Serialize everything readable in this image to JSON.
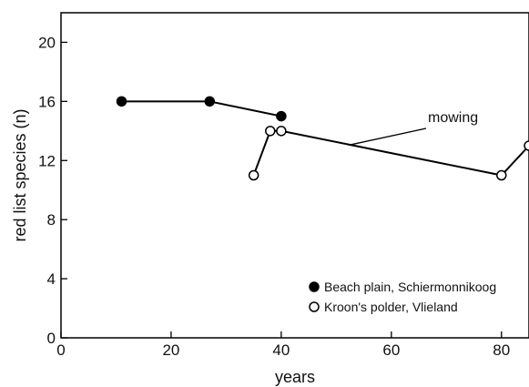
{
  "chart_data": {
    "type": "line",
    "title": "",
    "xlabel": "years",
    "ylabel": "red list species (n)",
    "xlim": [
      0,
      85
    ],
    "ylim": [
      0,
      22
    ],
    "xticks": [
      0,
      20,
      40,
      60,
      80
    ],
    "yticks": [
      0,
      4,
      8,
      12,
      16,
      20
    ],
    "grid": false,
    "legend_position": "bottom-right",
    "series": [
      {
        "name": "Beach plain, Schiermonnikoog",
        "marker": "filled-circle",
        "color": "#000000",
        "x": [
          11,
          27,
          40
        ],
        "y": [
          16,
          16,
          15
        ]
      },
      {
        "name": "Kroon's polder, Vlieland",
        "marker": "open-circle",
        "color": "#000000",
        "x": [
          35,
          38,
          40,
          80,
          85
        ],
        "y": [
          11,
          14,
          14,
          11,
          13
        ]
      }
    ],
    "annotations": [
      {
        "text": "mowing",
        "x": 52.5,
        "y": 13.06
      }
    ]
  }
}
